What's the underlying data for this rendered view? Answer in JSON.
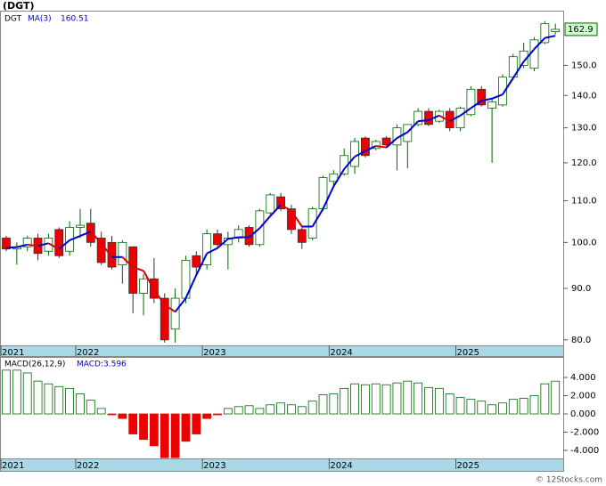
{
  "chart_data": [
    {
      "type": "candlestick",
      "title": "(DGT)",
      "log_scale": true,
      "categories": [
        "2021",
        null,
        null,
        null,
        null,
        null,
        null,
        "2022",
        null,
        null,
        null,
        null,
        null,
        null,
        null,
        null,
        null,
        null,
        null,
        "2023",
        null,
        null,
        null,
        null,
        null,
        null,
        null,
        null,
        null,
        null,
        null,
        "2024",
        null,
        null,
        null,
        null,
        null,
        null,
        null,
        null,
        null,
        null,
        null,
        "2025",
        null,
        null,
        null,
        null,
        null,
        null,
        null,
        null,
        null
      ],
      "series": [
        {
          "name": "DGT",
          "up_color": "#006600",
          "down_color": "#ee0000",
          "open": [
            101,
            98.5,
            99,
            101,
            98,
            103,
            98,
            103.5,
            104.5,
            101,
            100,
            95,
            99,
            89,
            92,
            88,
            82,
            88,
            97,
            95,
            102,
            99.5,
            101,
            103.5,
            99.5,
            107,
            111,
            108,
            103,
            101,
            108,
            115,
            117,
            119,
            127,
            124,
            127,
            125,
            126,
            131,
            135,
            132,
            135,
            130,
            134,
            142,
            136,
            137,
            146,
            150,
            149,
            158,
            162
          ],
          "high": [
            101.5,
            100,
            101.5,
            102,
            102,
            103.5,
            105,
            108,
            108,
            102.5,
            101.5,
            100.5,
            99,
            93,
            96.5,
            89,
            90,
            97,
            98,
            103,
            103,
            102.5,
            104,
            104,
            108,
            112,
            112,
            109,
            103.5,
            108.5,
            116.5,
            118,
            124,
            127,
            127.5,
            126.5,
            127.5,
            131,
            131,
            136,
            136,
            135.5,
            136,
            136.5,
            143,
            143,
            139,
            147,
            154,
            158,
            160,
            166,
            165
          ],
          "low": [
            98,
            95,
            98,
            96,
            97,
            96.5,
            97,
            101,
            99,
            95,
            94,
            91,
            85,
            84.6,
            87,
            79.5,
            79.5,
            87,
            93,
            94,
            99,
            94,
            100,
            99,
            99,
            106.5,
            107.5,
            102,
            98.5,
            100.5,
            107.5,
            114,
            116.5,
            117,
            121.5,
            123.5,
            124.5,
            118,
            118.5,
            130.5,
            130.5,
            131.5,
            129,
            129,
            133.5,
            136.5,
            120,
            136.5,
            145,
            149,
            148,
            157.5,
            161
          ],
          "close": [
            98.5,
            99,
            101,
            97.5,
            101,
            97,
            103.5,
            104,
            100,
            95.5,
            94.5,
            100,
            89,
            92,
            88,
            80,
            88,
            96,
            94.5,
            102,
            99.5,
            101,
            103,
            99.5,
            107.5,
            111.5,
            108,
            103,
            100,
            108,
            116,
            117,
            122,
            126,
            122,
            126,
            125,
            130,
            131,
            135,
            131,
            135,
            130,
            136,
            142,
            137,
            138,
            146,
            153,
            155,
            159,
            165,
            162.9
          ]
        }
      ],
      "ma": {
        "name": "MA(3)",
        "color": "#0000cc",
        "down_color": "#dd0000",
        "values": [
          98.8,
          98.9,
          99.5,
          99.2,
          99.8,
          98.5,
          100.5,
          101.5,
          102.5,
          99.8,
          96.7,
          96.7,
          94.5,
          93.7,
          89.7,
          86.7,
          85.3,
          88,
          92.8,
          97.5,
          98.7,
          100.8,
          101.2,
          101.2,
          103.3,
          106.2,
          109,
          107.5,
          103.7,
          103.7,
          108,
          113.7,
          118.3,
          121.7,
          123.3,
          124.7,
          124.3,
          127,
          128.7,
          132,
          132.3,
          133.7,
          132,
          133.7,
          136,
          138.3,
          139,
          140.3,
          145.7,
          151.3,
          155.7,
          159.7,
          160.51
        ]
      },
      "ylim": [
        79,
        170
      ],
      "yticks": [
        {
          "value": 80,
          "label": "80.0"
        },
        {
          "value": 90,
          "label": "90.0"
        },
        {
          "value": 100,
          "label": "100.0"
        },
        {
          "value": 110,
          "label": "110.0"
        },
        {
          "value": 120,
          "label": "120.0"
        },
        {
          "value": 130,
          "label": "130.0"
        },
        {
          "value": 140,
          "label": "140.0"
        },
        {
          "value": 150,
          "label": "150.0"
        }
      ]
    },
    {
      "type": "histogram_bars",
      "title": "MACD(26,12,9)",
      "legend": "MACD:3.596",
      "series": [
        {
          "name": "MACD",
          "color": "#006600",
          "down_color": "#ee0000",
          "values": [
            4.8,
            4.8,
            4.5,
            3.6,
            3.3,
            3.0,
            2.8,
            2.2,
            1.5,
            0.6,
            -0.1,
            -0.5,
            -2.2,
            -2.8,
            -3.5,
            -4.8,
            -4.8,
            -3.0,
            -2.2,
            -0.5,
            -0.1,
            0.6,
            0.8,
            0.9,
            0.6,
            1.0,
            1.2,
            1.0,
            0.8,
            1.4,
            2.1,
            2.2,
            2.8,
            3.3,
            3.2,
            3.3,
            3.2,
            3.4,
            3.6,
            3.4,
            2.9,
            2.8,
            2.2,
            1.8,
            1.6,
            1.4,
            1.0,
            1.2,
            1.6,
            1.7,
            2.0,
            3.3,
            3.596
          ]
        }
      ],
      "ylim": [
        -4.88,
        6.25
      ],
      "yticks": [
        {
          "value": 4,
          "label": "4.000"
        },
        {
          "value": 2,
          "label": "2.000"
        },
        {
          "value": 0,
          "label": "0.000"
        },
        {
          "value": -2,
          "label": "-2.000"
        },
        {
          "value": -4,
          "label": "-4.000"
        }
      ]
    }
  ],
  "footer": "© 12Stocks.com"
}
